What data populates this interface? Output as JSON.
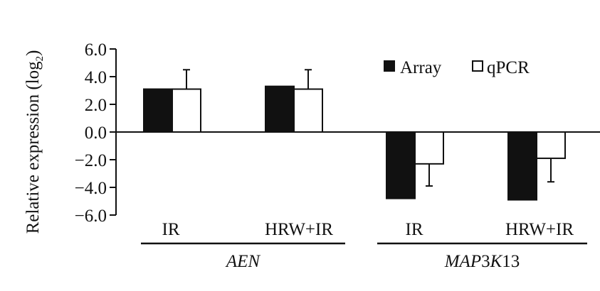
{
  "chart_data": {
    "type": "bar",
    "ylabel": "Relative expression (log",
    "ylabel_subscript": "2",
    "ylabel_suffix": ")",
    "ylim": [
      -6.0,
      6.0
    ],
    "yticks": [
      "6.0",
      "4.0",
      "2.0",
      "0.0",
      "−2.0",
      "−4.0",
      "−6.0"
    ],
    "ytick_values": [
      6,
      4,
      2,
      0,
      -2,
      -4,
      -6
    ],
    "categories": [
      "IR",
      "HRW+IR",
      "IR",
      "HRW+IR"
    ],
    "groups": [
      {
        "label_parts": [
          {
            "text": "AEN",
            "italic": true
          }
        ],
        "categories": [
          0,
          1
        ]
      },
      {
        "label_parts": [
          {
            "text": "MAP",
            "italic": true
          },
          {
            "text": "3",
            "italic": false
          },
          {
            "text": "K",
            "italic": true
          },
          {
            "text": "13",
            "italic": false
          }
        ],
        "categories": [
          2,
          3
        ]
      }
    ],
    "series": [
      {
        "name": "Array",
        "color": "#111111",
        "fill": "solid",
        "values": [
          3.1,
          3.3,
          -4.8,
          -4.9
        ],
        "errors": [
          null,
          null,
          null,
          null
        ]
      },
      {
        "name": "qPCR",
        "color": "#ffffff",
        "fill": "open",
        "values": [
          3.1,
          3.1,
          -2.3,
          -1.9
        ],
        "errors": [
          1.4,
          1.4,
          1.6,
          1.7
        ]
      }
    ],
    "legend": {
      "position": "top-right"
    },
    "grid": false
  }
}
